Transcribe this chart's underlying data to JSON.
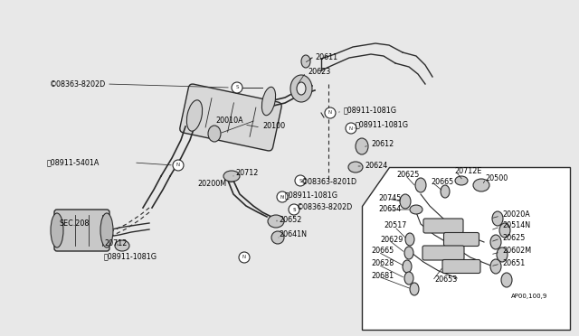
{
  "bg_color": "#e8e8e8",
  "line_color": "#2a2a2a",
  "text_color": "#000000",
  "fig_width": 6.4,
  "fig_height": 3.72,
  "dpi": 100,
  "xlim": [
    0,
    640
  ],
  "ylim": [
    0,
    372
  ]
}
